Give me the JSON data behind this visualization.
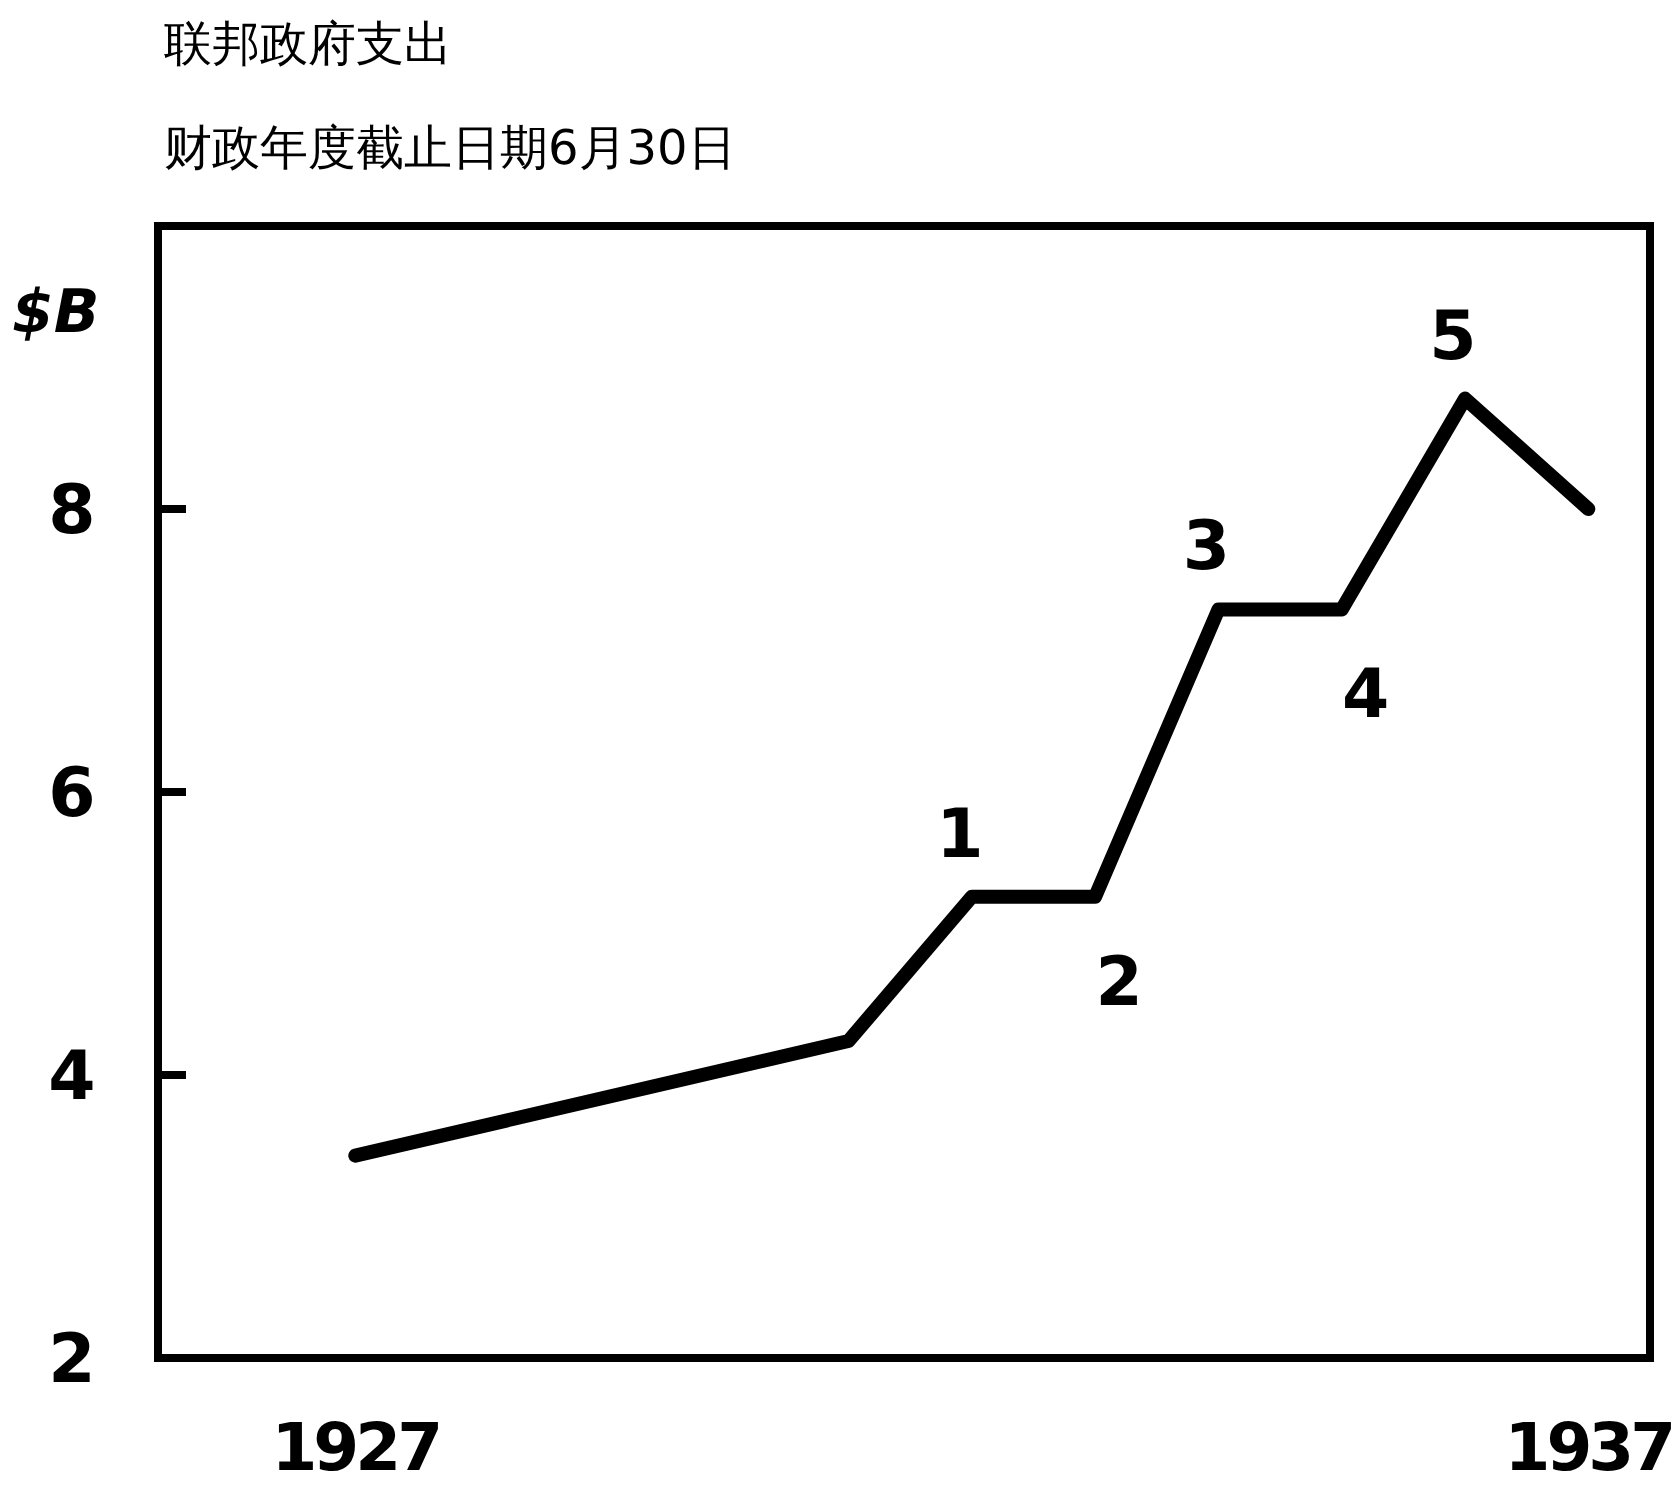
{
  "chart_data": {
    "type": "line",
    "title": "联邦政府支出",
    "subtitle": "财政年度截止日期6月30日",
    "ylabel": "$B",
    "x": [
      1927,
      1931,
      1932,
      1933,
      1934,
      1935,
      1936,
      1937
    ],
    "series": [
      {
        "color": "#000000",
        "values": [
          3.43,
          4.24,
          5.26,
          5.26,
          7.29,
          7.29,
          8.78,
          8.0
        ]
      }
    ],
    "xlim": [
      1925.4,
      1937.5
    ],
    "ylim": [
      2,
      10
    ],
    "xticks": [
      1927,
      1937
    ],
    "yticks": [
      2,
      4,
      6,
      8
    ],
    "annotations": [
      {
        "text": "1",
        "x": 1932,
        "y": 5.26
      },
      {
        "text": "2",
        "x": 1933,
        "y": 5.26
      },
      {
        "text": "3",
        "x": 1934,
        "y": 7.29
      },
      {
        "text": "4",
        "x": 1935,
        "y": 7.29
      },
      {
        "text": "5",
        "x": 1936,
        "y": 8.78
      }
    ],
    "grid": false,
    "marker": "none",
    "line_style": "solid"
  }
}
